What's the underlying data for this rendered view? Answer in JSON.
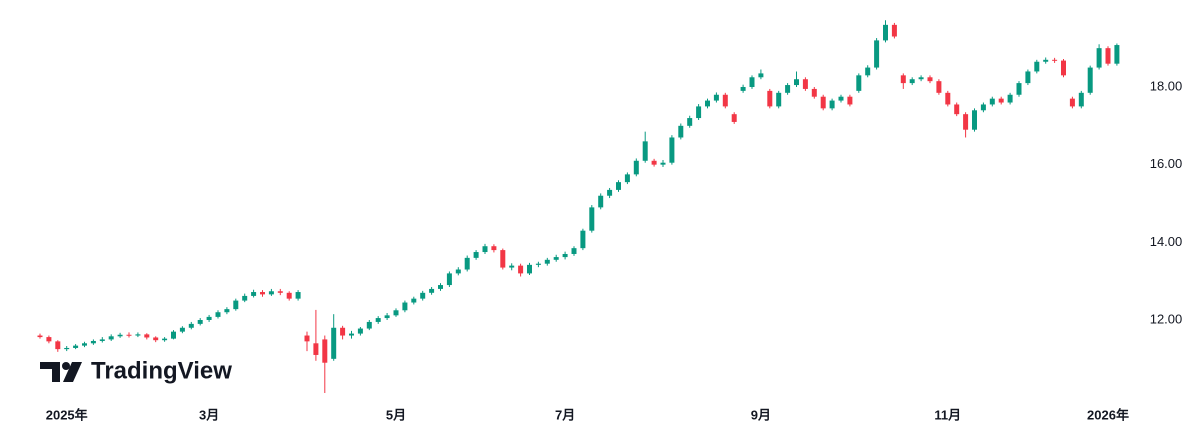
{
  "chart_data": {
    "type": "candlestick",
    "watermark": "TradingView",
    "up_color": "#089981",
    "down_color": "#f23645",
    "categories": [
      null,
      null,
      null,
      "2025年",
      null,
      null,
      null,
      null,
      null,
      null,
      null,
      null,
      null,
      null,
      null,
      null,
      null,
      null,
      null,
      "3月",
      null,
      null,
      null,
      null,
      null,
      null,
      null,
      null,
      null,
      null,
      null,
      null,
      null,
      null,
      null,
      null,
      null,
      null,
      null,
      null,
      "5月",
      null,
      null,
      null,
      null,
      null,
      null,
      null,
      null,
      null,
      null,
      null,
      null,
      null,
      null,
      null,
      null,
      null,
      null,
      "7月",
      null,
      null,
      null,
      null,
      null,
      null,
      null,
      null,
      null,
      null,
      null,
      null,
      null,
      null,
      null,
      null,
      null,
      null,
      null,
      null,
      null,
      "9月",
      null,
      null,
      null,
      null,
      null,
      null,
      null,
      null,
      null,
      null,
      null,
      null,
      null,
      null,
      null,
      null,
      null,
      null,
      null,
      null,
      "11月",
      null,
      null,
      null,
      null,
      null,
      null,
      null,
      null,
      null,
      null,
      null,
      null,
      null,
      null,
      null,
      null,
      null,
      "2026年",
      null
    ],
    "open": [
      11.6,
      11.56,
      11.45,
      11.25,
      11.28,
      11.34,
      11.4,
      11.46,
      11.5,
      11.58,
      11.62,
      11.6,
      11.63,
      11.55,
      11.48,
      11.52,
      11.7,
      11.8,
      11.9,
      12.0,
      12.08,
      12.2,
      12.28,
      12.5,
      12.62,
      12.72,
      12.66,
      12.74,
      12.7,
      12.55,
      11.6,
      11.4,
      11.5,
      11.0,
      11.8,
      11.6,
      11.65,
      11.78,
      11.95,
      12.05,
      12.12,
      12.25,
      12.45,
      12.55,
      12.7,
      12.8,
      12.9,
      13.2,
      13.3,
      13.6,
      13.75,
      13.9,
      13.8,
      13.35,
      13.4,
      13.2,
      13.42,
      13.45,
      13.55,
      13.62,
      13.7,
      13.85,
      14.3,
      14.9,
      15.2,
      15.35,
      15.55,
      15.75,
      16.1,
      16.1,
      16.0,
      16.05,
      16.7,
      17.0,
      17.2,
      17.5,
      17.65,
      17.8,
      17.3,
      17.9,
      18.0,
      18.25,
      17.9,
      17.5,
      17.85,
      18.05,
      18.2,
      17.95,
      17.75,
      17.45,
      17.65,
      17.75,
      17.9,
      18.3,
      18.5,
      19.2,
      19.6,
      18.3,
      18.1,
      18.2,
      18.25,
      18.15,
      17.85,
      17.55,
      17.3,
      16.9,
      17.4,
      17.55,
      17.7,
      17.6,
      17.8,
      18.1,
      18.4,
      18.65,
      18.7,
      18.68,
      17.7,
      17.5,
      17.85,
      18.5,
      19.0,
      18.6
    ],
    "high": [
      11.65,
      11.6,
      11.48,
      11.33,
      11.38,
      11.44,
      11.5,
      11.56,
      11.63,
      11.67,
      11.68,
      11.68,
      11.66,
      11.58,
      11.56,
      11.74,
      11.84,
      11.95,
      12.05,
      12.13,
      12.25,
      12.33,
      12.55,
      12.68,
      12.78,
      12.77,
      12.8,
      12.8,
      12.74,
      12.77,
      11.7,
      12.26,
      11.6,
      12.15,
      11.85,
      11.72,
      11.82,
      12.0,
      12.1,
      12.18,
      12.3,
      12.5,
      12.6,
      12.75,
      12.85,
      12.95,
      13.25,
      13.36,
      13.66,
      13.8,
      13.96,
      13.95,
      13.84,
      13.46,
      13.45,
      13.47,
      13.5,
      13.6,
      13.68,
      13.76,
      13.9,
      14.35,
      14.96,
      15.26,
      15.4,
      15.6,
      15.8,
      16.16,
      16.85,
      16.15,
      16.12,
      16.76,
      17.06,
      17.26,
      17.56,
      17.7,
      17.86,
      17.85,
      17.35,
      18.06,
      18.3,
      18.45,
      17.95,
      17.9,
      18.1,
      18.4,
      18.25,
      18.0,
      17.8,
      17.7,
      17.8,
      17.8,
      18.35,
      18.56,
      19.26,
      19.72,
      19.65,
      18.35,
      18.25,
      18.3,
      18.3,
      18.2,
      17.9,
      17.6,
      17.35,
      17.45,
      17.6,
      17.75,
      17.75,
      17.85,
      18.15,
      18.45,
      18.7,
      18.76,
      18.75,
      18.72,
      17.75,
      17.9,
      18.55,
      19.1,
      19.05,
      19.12
    ],
    "low": [
      11.52,
      11.4,
      11.18,
      11.2,
      11.25,
      11.3,
      11.36,
      11.42,
      11.46,
      11.54,
      11.55,
      11.56,
      11.5,
      11.43,
      11.44,
      11.5,
      11.66,
      11.76,
      11.86,
      11.95,
      12.04,
      12.15,
      12.24,
      12.46,
      12.58,
      12.6,
      12.62,
      12.64,
      12.5,
      12.5,
      11.2,
      10.95,
      10.12,
      10.95,
      11.5,
      11.52,
      11.6,
      11.74,
      11.9,
      12.0,
      12.08,
      12.2,
      12.4,
      12.5,
      12.65,
      12.75,
      12.85,
      13.15,
      13.25,
      13.55,
      13.7,
      13.74,
      13.3,
      13.28,
      13.12,
      13.16,
      13.36,
      13.4,
      13.5,
      13.56,
      13.65,
      13.8,
      14.25,
      14.85,
      15.14,
      15.3,
      15.5,
      15.7,
      16.05,
      15.95,
      15.94,
      16.0,
      16.65,
      16.95,
      17.15,
      17.45,
      17.6,
      17.45,
      17.05,
      17.85,
      17.95,
      18.2,
      17.45,
      17.45,
      17.8,
      18.0,
      17.9,
      17.7,
      17.4,
      17.4,
      17.6,
      17.5,
      17.85,
      18.25,
      18.45,
      19.15,
      19.25,
      17.95,
      18.05,
      18.15,
      18.1,
      17.8,
      17.5,
      17.25,
      16.7,
      16.85,
      17.35,
      17.5,
      17.55,
      17.55,
      17.75,
      18.05,
      18.35,
      18.6,
      18.62,
      18.25,
      17.45,
      17.45,
      17.8,
      18.45,
      18.55,
      18.55
    ],
    "close": [
      11.56,
      11.45,
      11.25,
      11.28,
      11.34,
      11.4,
      11.46,
      11.5,
      11.58,
      11.62,
      11.6,
      11.63,
      11.55,
      11.48,
      11.52,
      11.7,
      11.8,
      11.9,
      12.0,
      12.08,
      12.2,
      12.28,
      12.5,
      12.62,
      12.72,
      12.66,
      12.74,
      12.7,
      12.55,
      12.72,
      11.45,
      11.1,
      10.9,
      11.8,
      11.6,
      11.65,
      11.78,
      11.95,
      12.05,
      12.12,
      12.25,
      12.45,
      12.55,
      12.7,
      12.8,
      12.9,
      13.2,
      13.3,
      13.6,
      13.75,
      13.9,
      13.8,
      13.35,
      13.4,
      13.2,
      13.42,
      13.45,
      13.55,
      13.62,
      13.7,
      13.85,
      14.3,
      14.9,
      15.2,
      15.35,
      15.55,
      15.75,
      16.1,
      16.6,
      16.0,
      16.05,
      16.7,
      17.0,
      17.2,
      17.5,
      17.65,
      17.8,
      17.5,
      17.1,
      18.0,
      18.25,
      18.35,
      17.5,
      17.85,
      18.05,
      18.2,
      17.95,
      17.75,
      17.45,
      17.65,
      17.75,
      17.55,
      18.3,
      18.5,
      19.2,
      19.6,
      19.3,
      18.1,
      18.2,
      18.25,
      18.15,
      17.85,
      17.55,
      17.3,
      16.9,
      17.4,
      17.55,
      17.7,
      17.6,
      17.8,
      18.1,
      18.4,
      18.65,
      18.7,
      18.68,
      18.3,
      17.5,
      17.85,
      18.5,
      19.0,
      18.6,
      19.08
    ],
    "ylim": [
      9.94,
      20.24
    ],
    "yticks": [
      {
        "value": 12,
        "label": "12.00"
      },
      {
        "value": 14,
        "label": "14.00"
      },
      {
        "value": 16,
        "label": "16.00"
      },
      {
        "value": 18,
        "label": "18.00"
      }
    ]
  }
}
